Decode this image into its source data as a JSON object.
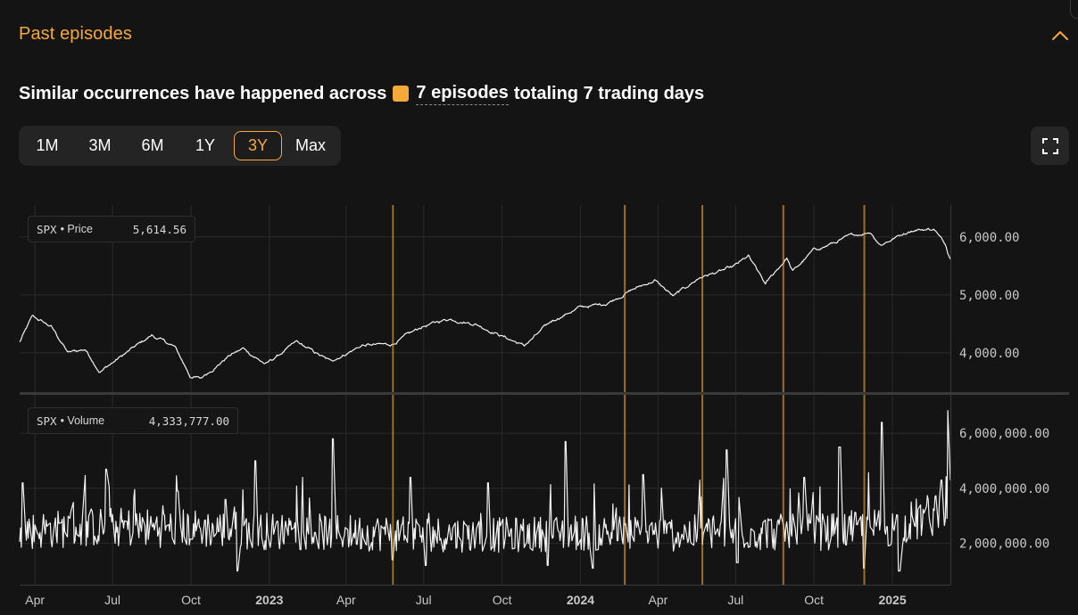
{
  "header": {
    "title": "Past episodes"
  },
  "summary": {
    "prefix": "Similar occurrences have happened across",
    "episodes_text": "7 episodes",
    "suffix": "totaling 7 trading days",
    "accent_color": "#f6a93b"
  },
  "range_buttons": [
    {
      "label": "1M",
      "active": false
    },
    {
      "label": "3M",
      "active": false
    },
    {
      "label": "6M",
      "active": false
    },
    {
      "label": "1Y",
      "active": false
    },
    {
      "label": "3Y",
      "active": true
    },
    {
      "label": "Max",
      "active": false
    }
  ],
  "icons": {
    "collapse": "chevron-up-icon",
    "fullscreen": "fullscreen-icon"
  },
  "legends": {
    "price": {
      "symbol": "SPX",
      "series": "• Price",
      "value": "5,614.56"
    },
    "volume": {
      "symbol": "SPX",
      "series": "• Volume",
      "value": "4,333,777.00"
    }
  },
  "chart_data": {
    "type": "line",
    "x_tick_labels": [
      "Apr",
      "Jul",
      "Oct",
      "2023",
      "Apr",
      "Jul",
      "Oct",
      "2024",
      "Apr",
      "Jul",
      "Oct",
      "2025"
    ],
    "x_tick_dates": [
      "2022-04-01",
      "2022-07-01",
      "2022-10-01",
      "2023-01-01",
      "2023-04-01",
      "2023-07-01",
      "2023-10-01",
      "2024-01-01",
      "2024-04-01",
      "2024-07-01",
      "2024-10-01",
      "2025-01-01"
    ],
    "x_range": [
      "2022-03-14",
      "2025-03-10"
    ],
    "episode_dates": [
      "2023-05-26",
      "2024-02-22",
      "2024-05-23",
      "2024-08-26",
      "2024-11-29"
    ],
    "episode_color": "#f6a93b",
    "panels": [
      {
        "series": "SPX • Price",
        "y_tick_labels": [
          "6,000.00",
          "5,000.00",
          "4,000.00"
        ],
        "y_ticks": [
          6000,
          5000,
          4000
        ],
        "y_range": [
          3350,
          6550
        ],
        "anchors": [
          [
            "2022-03-14",
            4180
          ],
          [
            "2022-03-29",
            4620
          ],
          [
            "2022-04-20",
            4450
          ],
          [
            "2022-05-10",
            4000
          ],
          [
            "2022-05-30",
            4060
          ],
          [
            "2022-06-16",
            3680
          ],
          [
            "2022-07-01",
            3830
          ],
          [
            "2022-08-16",
            4300
          ],
          [
            "2022-09-12",
            4100
          ],
          [
            "2022-09-30",
            3600
          ],
          [
            "2022-10-12",
            3550
          ],
          [
            "2022-11-15",
            3950
          ],
          [
            "2022-12-01",
            4070
          ],
          [
            "2022-12-28",
            3800
          ],
          [
            "2023-02-02",
            4180
          ],
          [
            "2023-03-13",
            3850
          ],
          [
            "2023-04-20",
            4130
          ],
          [
            "2023-05-24",
            4140
          ],
          [
            "2023-06-30",
            4450
          ],
          [
            "2023-07-31",
            4590
          ],
          [
            "2023-08-31",
            4500
          ],
          [
            "2023-10-27",
            4120
          ],
          [
            "2023-11-30",
            4560
          ],
          [
            "2023-12-29",
            4770
          ],
          [
            "2024-01-31",
            4850
          ],
          [
            "2024-02-28",
            5070
          ],
          [
            "2024-03-28",
            5250
          ],
          [
            "2024-04-19",
            4970
          ],
          [
            "2024-05-20",
            5300
          ],
          [
            "2024-06-28",
            5470
          ],
          [
            "2024-07-16",
            5660
          ],
          [
            "2024-08-05",
            5180
          ],
          [
            "2024-08-30",
            5640
          ],
          [
            "2024-09-06",
            5400
          ],
          [
            "2024-09-30",
            5760
          ],
          [
            "2024-10-18",
            5860
          ],
          [
            "2024-11-11",
            6000
          ],
          [
            "2024-12-06",
            6090
          ],
          [
            "2024-12-18",
            5870
          ],
          [
            "2025-01-23",
            6120
          ],
          [
            "2025-02-19",
            6140
          ],
          [
            "2025-03-05",
            5840
          ],
          [
            "2025-03-10",
            5614.56
          ]
        ]
      },
      {
        "series": "SPX • Volume",
        "y_tick_labels": [
          "6,000,000.00",
          "4,000,000.00",
          "2,000,000.00"
        ],
        "y_ticks": [
          6000000,
          4000000,
          2000000
        ],
        "y_range": [
          500000,
          7300000
        ],
        "base_anchors": [
          [
            "2022-03-14",
            2450000
          ],
          [
            "2022-06-15",
            2600000
          ],
          [
            "2022-10-01",
            2550000
          ],
          [
            "2023-01-01",
            2450000
          ],
          [
            "2023-04-01",
            2400000
          ],
          [
            "2023-07-01",
            2350000
          ],
          [
            "2023-10-01",
            2300000
          ],
          [
            "2024-01-01",
            2400000
          ],
          [
            "2024-04-01",
            2350000
          ],
          [
            "2024-07-01",
            2400000
          ],
          [
            "2024-10-01",
            2400000
          ],
          [
            "2025-01-01",
            2600000
          ],
          [
            "2025-02-15",
            3000000
          ],
          [
            "2025-03-10",
            3800000
          ]
        ],
        "spikes": [
          [
            "2022-03-18",
            4200000
          ],
          [
            "2022-06-24",
            4700000
          ],
          [
            "2022-09-16",
            3900000
          ],
          [
            "2022-11-11",
            3600000
          ],
          [
            "2022-12-16",
            5000000
          ],
          [
            "2023-03-17",
            5800000
          ],
          [
            "2023-06-16",
            4400000
          ],
          [
            "2023-09-15",
            4200000
          ],
          [
            "2023-12-15",
            5700000
          ],
          [
            "2024-03-15",
            4500000
          ],
          [
            "2024-06-21",
            5400000
          ],
          [
            "2024-09-20",
            4400000
          ],
          [
            "2024-10-31",
            5500000
          ],
          [
            "2024-12-20",
            6400000
          ],
          [
            "2025-02-28",
            4300000
          ]
        ],
        "dips": [
          [
            "2022-11-25",
            1000000
          ],
          [
            "2023-05-26",
            1400000
          ],
          [
            "2023-07-03",
            1200000
          ],
          [
            "2023-11-24",
            1200000
          ],
          [
            "2024-01-15",
            1100000
          ],
          [
            "2024-07-03",
            1300000
          ],
          [
            "2024-11-29",
            1100000
          ],
          [
            "2025-01-09",
            1000000
          ]
        ]
      }
    ]
  }
}
